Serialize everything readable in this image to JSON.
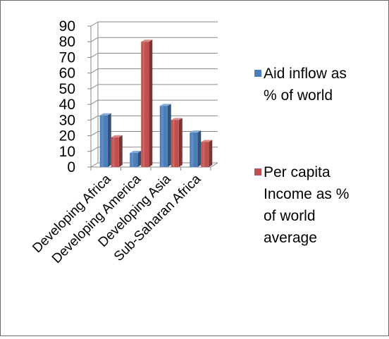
{
  "chart_data": {
    "type": "bar",
    "style": "3d-clustered-column",
    "categories": [
      "Developing Africa",
      "Developing America",
      "Developing Asia",
      "Sub-Saharan Africa"
    ],
    "series": [
      {
        "name": "Aid inflow as % of world",
        "color": "#4a7ebb",
        "values": [
          33,
          9,
          39,
          22
        ]
      },
      {
        "name": "Per capita Income as % of world average",
        "color": "#c0504d",
        "values": [
          19,
          80,
          30,
          16
        ]
      }
    ],
    "ylim": [
      0,
      90
    ],
    "yticks": [
      "0",
      "10",
      "20",
      "30",
      "40",
      "50",
      "60",
      "70",
      "80",
      "90"
    ],
    "grid": true,
    "legend": {
      "placement": "right",
      "items": [
        {
          "lines": [
            "Aid inflow as",
            "% of world"
          ]
        },
        {
          "lines": [
            "Per capita",
            "Income as %",
            "of world",
            "average"
          ]
        }
      ]
    }
  }
}
